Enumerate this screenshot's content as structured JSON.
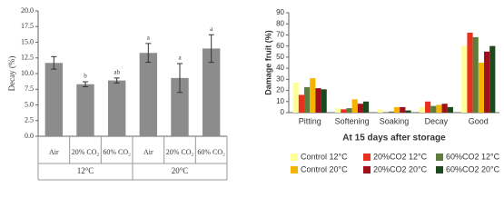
{
  "chart_data": [
    {
      "type": "bar",
      "ylabel": "Decay (%)",
      "categories": [
        "Air",
        "20% CO₂",
        "60% CO₂",
        "Air",
        "20% CO₂",
        "60% CO₂"
      ],
      "group_labels": [
        "12°C",
        "20°C"
      ],
      "values": [
        11.7,
        8.3,
        8.9,
        13.3,
        9.3,
        14.0
      ],
      "errors": [
        1.0,
        0.4,
        0.4,
        1.5,
        2.3,
        2.2
      ],
      "letters": [
        null,
        "b",
        "ab",
        "a",
        "a",
        "a"
      ],
      "color": "#8c8c8c",
      "ylim": [
        0,
        20
      ],
      "yticks": [
        {
          "value": 0,
          "label": "0.0"
        },
        {
          "value": 2.5,
          "label": "2.5"
        },
        {
          "value": 5,
          "label": "5.0"
        },
        {
          "value": 7.5,
          "label": "7.5"
        },
        {
          "value": 10,
          "label": "10.0"
        },
        {
          "value": 12.5,
          "label": "12.5"
        },
        {
          "value": 15,
          "label": "15.0"
        },
        {
          "value": 17.5,
          "label": "17.5"
        },
        {
          "value": 20,
          "label": "20.0"
        }
      ]
    },
    {
      "type": "grouped-bar",
      "ylabel": "Damage fruit (%)",
      "xlabel": "At 15 days after storage",
      "categories": [
        "Pitting",
        "Softening",
        "Soaking",
        "Decay",
        "Good"
      ],
      "series": [
        {
          "name": "Control 12°C",
          "color": "#ffff99",
          "values": [
            27,
            4,
            3,
            5,
            60
          ]
        },
        {
          "name": "20%CO2 12°C",
          "color": "#e8301c",
          "values": [
            16,
            3,
            0,
            10,
            72
          ]
        },
        {
          "name": "60%CO2 12°C",
          "color": "#5e7d3c",
          "values": [
            23,
            4,
            1,
            6,
            68
          ]
        },
        {
          "name": "Control 20°C",
          "color": "#f5b400",
          "values": [
            31,
            12,
            5,
            7,
            45
          ]
        },
        {
          "name": "20%CO2 20°C",
          "color": "#a0101a",
          "values": [
            22,
            8,
            5,
            8,
            55
          ]
        },
        {
          "name": "60%CO2 20°C",
          "color": "#1d4a1d",
          "values": [
            21,
            10,
            2,
            5,
            60
          ]
        }
      ],
      "ylim": [
        0,
        90
      ],
      "yticks": [
        0,
        10,
        20,
        30,
        40,
        50,
        60,
        70,
        80,
        90
      ]
    }
  ]
}
